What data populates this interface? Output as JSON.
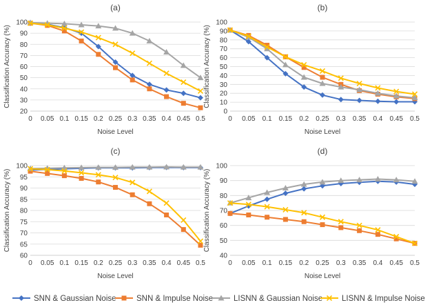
{
  "chart_data": [
    {
      "type": "line",
      "title": "(a)",
      "xlabel": "Noise Level",
      "ylabel": "Classification Accuracy (%)",
      "x": [
        0,
        0.05,
        0.1,
        0.15,
        0.2,
        0.25,
        0.3,
        0.35,
        0.4,
        0.45,
        0.5
      ],
      "x_tick_labels": [
        "0",
        "0.05",
        "0.1",
        "0.15",
        "0.2",
        "0.25",
        "0.3",
        "0.35",
        "0.4",
        "0.45",
        "0.5"
      ],
      "ylim": [
        20,
        100
      ],
      "y_ticks": [
        20,
        30,
        40,
        50,
        60,
        70,
        80,
        90,
        100
      ],
      "grid": true,
      "series": [
        {
          "name": "SNN & Gaussian Noise",
          "values": [
            99,
            98,
            95,
            90,
            78,
            64,
            52,
            44,
            39,
            36,
            32
          ]
        },
        {
          "name": "SNN & Impulse Noise",
          "values": [
            99,
            97,
            92,
            83,
            71,
            59,
            48,
            40,
            33,
            27,
            23
          ]
        },
        {
          "name": "LISNN & Gaussian Noise",
          "values": [
            99.5,
            99,
            98.5,
            97.5,
            96.5,
            94.5,
            90,
            83,
            73,
            61,
            50
          ]
        },
        {
          "name": "LISNN & Impulse Noise",
          "values": [
            99,
            97.5,
            94.5,
            91,
            86,
            80,
            72,
            63,
            54,
            46,
            38
          ]
        }
      ]
    },
    {
      "type": "line",
      "title": "(b)",
      "xlabel": "Noise Level",
      "ylabel": "Classification Accuracy (%)",
      "x": [
        0,
        0.05,
        0.1,
        0.15,
        0.2,
        0.25,
        0.3,
        0.35,
        0.4,
        0.45,
        0.5
      ],
      "x_tick_labels": [
        "0",
        "0.05",
        "0.1",
        "0.15",
        "0.2",
        "0.25",
        "0.3",
        "0.35",
        "0.4",
        "0.45",
        "0.5"
      ],
      "ylim": [
        0,
        100
      ],
      "y_ticks": [
        0,
        10,
        20,
        30,
        40,
        50,
        60,
        70,
        80,
        90,
        100
      ],
      "grid": true,
      "series": [
        {
          "name": "SNN & Gaussian Noise",
          "values": [
            91,
            78,
            60,
            42,
            27,
            18,
            13,
            12,
            11,
            10.5,
            10.5
          ]
        },
        {
          "name": "SNN & Impulse Noise",
          "values": [
            91,
            85,
            74,
            61,
            49,
            38,
            30,
            23,
            19,
            16,
            14
          ]
        },
        {
          "name": "LISNN & Gaussian Noise",
          "values": [
            91,
            83,
            70,
            52,
            38,
            31,
            27,
            24,
            20,
            17,
            15
          ]
        },
        {
          "name": "LISNN & Impulse Noise",
          "values": [
            91,
            84,
            72,
            61,
            52,
            45,
            37,
            31,
            26,
            22,
            19
          ]
        }
      ]
    },
    {
      "type": "line",
      "title": "(c)",
      "xlabel": "Noise Level",
      "ylabel": "Classification Accuracy (%)",
      "x": [
        0,
        0.05,
        0.1,
        0.15,
        0.2,
        0.25,
        0.3,
        0.35,
        0.4,
        0.45,
        0.5
      ],
      "x_tick_labels": [
        "0",
        "0.05",
        "0.1",
        "0.15",
        "0.2",
        "0.25",
        "0.3",
        "0.35",
        "0.4",
        "0.45",
        "0.5"
      ],
      "ylim": [
        60,
        100
      ],
      "y_ticks": [
        60,
        65,
        70,
        75,
        80,
        85,
        90,
        95,
        100
      ],
      "grid": true,
      "series": [
        {
          "name": "SNN & Gaussian Noise",
          "values": [
            98,
            98.3,
            98.6,
            98.8,
            99,
            99,
            99,
            99.1,
            99.2,
            99.1,
            99.1
          ]
        },
        {
          "name": "SNN & Impulse Noise",
          "values": [
            97.5,
            96.5,
            95.5,
            94.3,
            92.7,
            90.3,
            87,
            83,
            78,
            71.5,
            64.5
          ]
        },
        {
          "name": "LISNN & Gaussian Noise",
          "values": [
            98.7,
            98.8,
            99,
            99.1,
            99.2,
            99.2,
            99.3,
            99.3,
            99.4,
            99.3,
            99.3
          ]
        },
        {
          "name": "LISNN & Impulse Noise",
          "values": [
            98.6,
            98.2,
            97.6,
            96.8,
            95.9,
            94.7,
            92.5,
            88.5,
            83.3,
            75.7,
            66.3
          ]
        }
      ]
    },
    {
      "type": "line",
      "title": "(d)",
      "xlabel": "Noise Level",
      "ylabel": "Classification Accuracy (%)",
      "x": [
        0,
        0.05,
        0.1,
        0.15,
        0.2,
        0.25,
        0.3,
        0.35,
        0.4,
        0.45,
        0.5
      ],
      "x_tick_labels": [
        "0",
        "0.05",
        "0.1",
        "0.15",
        "0.2",
        "0.25",
        "0.3",
        "0.35",
        "0.4",
        "0.45",
        "0.5"
      ],
      "ylim": [
        40,
        100
      ],
      "y_ticks": [
        40,
        50,
        60,
        70,
        80,
        90,
        100
      ],
      "grid": true,
      "series": [
        {
          "name": "SNN & Gaussian Noise",
          "values": [
            68,
            73,
            77.5,
            81.5,
            84.5,
            86.5,
            88,
            88.8,
            89.5,
            89,
            87.5
          ]
        },
        {
          "name": "SNN & Impulse Noise",
          "values": [
            68,
            67,
            65.5,
            64,
            62.5,
            60.5,
            58.5,
            56.5,
            54,
            51,
            48
          ]
        },
        {
          "name": "LISNN & Gaussian Noise",
          "values": [
            75,
            78.5,
            82,
            85,
            87.5,
            89,
            90,
            90.5,
            91,
            90.5,
            89.5
          ]
        },
        {
          "name": "LISNN & Impulse Noise",
          "values": [
            75,
            74,
            72.5,
            70.5,
            68.5,
            65.5,
            62.5,
            60,
            57,
            52.5,
            48
          ]
        }
      ]
    }
  ],
  "legend": {
    "placement": "bottom",
    "items": [
      {
        "label": "SNN & Gaussian Noise",
        "color": "#4472C4",
        "marker": "diamond"
      },
      {
        "label": "SNN & Impulse Noise",
        "color": "#ED7D31",
        "marker": "square"
      },
      {
        "label": "LISNN & Gaussian Noise",
        "color": "#A5A5A5",
        "marker": "triangle"
      },
      {
        "label": "LISNN & Impulse Noise",
        "color": "#FFC000",
        "marker": "x"
      }
    ]
  }
}
